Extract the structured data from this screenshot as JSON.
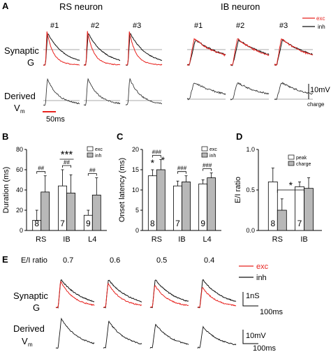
{
  "panel_labels": {
    "a": "A",
    "b": "B",
    "c": "C",
    "d": "D",
    "e": "E"
  },
  "panel_a": {
    "rs_title": "RS neuron",
    "ib_title": "IB neuron",
    "trial_labels": [
      "#1",
      "#2",
      "#3"
    ],
    "legend": {
      "exc": "exc",
      "inh": "inh"
    },
    "row_synaptic": [
      "Synaptic",
      "G"
    ],
    "row_derived": [
      "Derived",
      "V",
      "m"
    ],
    "scale_time": "50ms",
    "scale_voltage": "10mV",
    "scale_charge": "charge"
  },
  "panel_e": {
    "ratio_label": "E/I ratio",
    "ratios": [
      "0.7",
      "0.6",
      "0.5",
      "0.4"
    ],
    "legend": {
      "exc": "exc",
      "inh": "inh"
    },
    "row_synaptic": [
      "Synaptic",
      "G"
    ],
    "row_derived": [
      "Derived",
      "V",
      "m"
    ],
    "scale_g": "1nS",
    "scale_t1": "100ms",
    "scale_v": "10mV",
    "scale_t2": "100ms"
  },
  "colors": {
    "exc": "#e8231f",
    "inh": "#111111",
    "bar_exc": "#ffffff",
    "bar_inh": "#b8b8b8"
  },
  "chart_data": [
    {
      "panel": "B",
      "type": "bar",
      "ylabel": "Duration (ms)",
      "categories": [
        "RS",
        "IB",
        "L4"
      ],
      "ylim": [
        0,
        80
      ],
      "yticks": [
        0,
        20,
        40,
        60,
        80
      ],
      "series": [
        {
          "name": "exc",
          "values": [
            10,
            44,
            15
          ],
          "errors": [
            10,
            16,
            5
          ]
        },
        {
          "name": "inh",
          "values": [
            38,
            37,
            35
          ],
          "errors": [
            16,
            18,
            17
          ]
        }
      ],
      "n_labels": [
        "8",
        "7",
        "9"
      ],
      "significance": [
        "##",
        "##",
        "##"
      ],
      "extra_marks": [
        "***"
      ]
    },
    {
      "panel": "C",
      "type": "bar",
      "ylabel": "Onset latency (ms)",
      "categories": [
        "RS",
        "IB",
        "L4"
      ],
      "ylim": [
        0,
        20
      ],
      "yticks": [
        0,
        5,
        10,
        15,
        20
      ],
      "series": [
        {
          "name": "exc",
          "values": [
            13.5,
            11,
            11.5
          ],
          "errors": [
            1.5,
            1.2,
            1
          ]
        },
        {
          "name": "inh",
          "values": [
            15,
            12,
            13
          ],
          "errors": [
            2.5,
            1.5,
            1.2
          ]
        }
      ],
      "n_labels": [
        "8",
        "7",
        "9"
      ],
      "significance": [
        "###",
        "###",
        "###"
      ],
      "extra_marks": [
        "*",
        "*"
      ]
    },
    {
      "panel": "D",
      "type": "bar",
      "ylabel": "E/I ratio",
      "categories": [
        "RS",
        "IB"
      ],
      "ylim": [
        0,
        1.0
      ],
      "yticks": [
        0.0,
        0.5,
        1.0
      ],
      "series": [
        {
          "name": "peak",
          "values": [
            0.6,
            0.54
          ],
          "errors": [
            0.17,
            0.06
          ]
        },
        {
          "name": "charge",
          "values": [
            0.25,
            0.52
          ],
          "errors": [
            0.14,
            0.13
          ]
        }
      ],
      "n_labels": [
        "8",
        "7"
      ],
      "significance": [
        "*"
      ]
    }
  ]
}
